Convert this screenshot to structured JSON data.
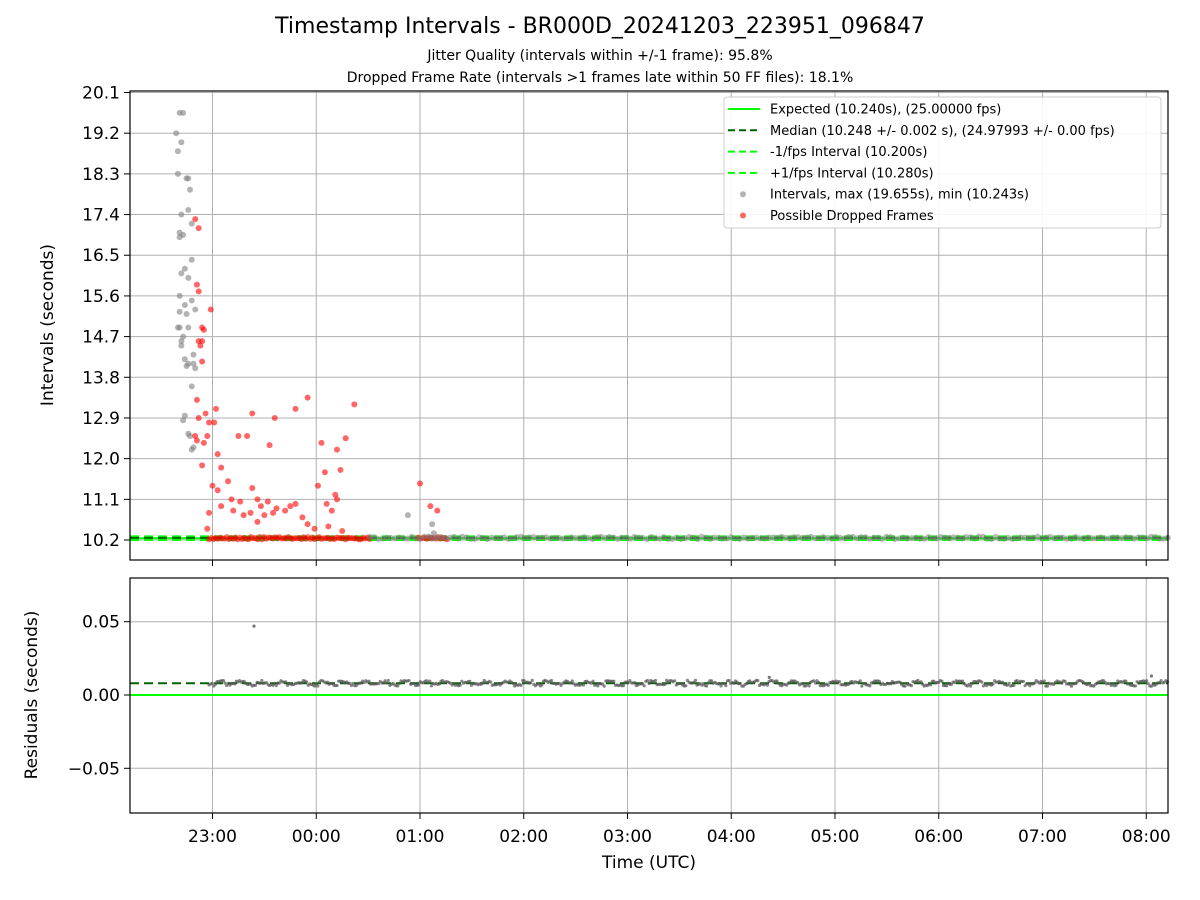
{
  "chart_data": [
    {
      "type": "scatter",
      "title": "Timestamp Intervals - BR000D_20241203_223951_096847",
      "subtitles": [
        "Jitter Quality (intervals within +/-1 frame): 95.8%",
        "Dropped Frame Rate (intervals >1 frames late within 50 FF files): 18.1%"
      ],
      "xlabel": "Time (UTC)",
      "ylabel": "Intervals (seconds)",
      "x_ticks": [
        "23:00",
        "00:00",
        "01:00",
        "02:00",
        "03:00",
        "04:00",
        "05:00",
        "06:00",
        "07:00",
        "08:00"
      ],
      "x_range": [
        "2024-12-03 22:12",
        "2024-12-04 08:13"
      ],
      "y_ticks": [
        "10.2",
        "11.1",
        "12.0",
        "12.9",
        "13.8",
        "14.7",
        "15.6",
        "16.5",
        "17.4",
        "18.3",
        "19.2",
        "20.1"
      ],
      "ylim": [
        9.78,
        20.2
      ],
      "grid": true,
      "legend_position": "top-right",
      "colors": {
        "expected": "#00ff00",
        "median": "#006400",
        "fps_interval": "#00ff00",
        "intervals": "#808080",
        "dropped": "#ff0000"
      },
      "legend": [
        {
          "label": "Expected (10.240s), (25.00000 fps)",
          "style": "solid-line",
          "color": "#00ff00"
        },
        {
          "label": "Median (10.248 +/- 0.002 s), (24.97993 +/- 0.00 fps)",
          "style": "dashed-line",
          "color": "#006400"
        },
        {
          "label": "-1/fps Interval (10.200s)",
          "style": "dashed-line",
          "color": "#00ff00"
        },
        {
          "label": "+1/fps Interval (10.280s)",
          "style": "dashed-line",
          "color": "#00ff00"
        },
        {
          "label": "Intervals, max (19.655s), min (10.243s)",
          "style": "marker",
          "color": "#808080"
        },
        {
          "label": "Possible Dropped Frames",
          "style": "marker",
          "color": "#ff0000"
        }
      ],
      "reference_lines": [
        {
          "name": "Expected",
          "y": 10.24
        },
        {
          "name": "Median",
          "y": 10.248
        },
        {
          "name": "-1/fps Interval",
          "y": 10.2
        },
        {
          "name": "+1/fps Interval",
          "y": 10.28
        }
      ],
      "series": [
        {
          "name": "Intervals, max (19.655s), min (10.243s)",
          "points": [
            {
              "x": "2024-12-03 22:39",
              "y": 19.2
            },
            {
              "x": "2024-12-03 22:40",
              "y": 18.3
            },
            {
              "x": "2024-12-03 22:40",
              "y": 18.8
            },
            {
              "x": "2024-12-03 22:41",
              "y": 19.65
            },
            {
              "x": "2024-12-03 22:43",
              "y": 19.65
            },
            {
              "x": "2024-12-03 22:42",
              "y": 19.0
            },
            {
              "x": "2024-12-03 22:46",
              "y": 18.2
            },
            {
              "x": "2024-12-03 22:47",
              "y": 17.95
            },
            {
              "x": "2024-12-03 22:46",
              "y": 17.5
            },
            {
              "x": "2024-12-03 22:45",
              "y": 18.2
            },
            {
              "x": "2024-12-03 22:42",
              "y": 17.4
            },
            {
              "x": "2024-12-03 22:41",
              "y": 17.0
            },
            {
              "x": "2024-12-03 22:41",
              "y": 16.9
            },
            {
              "x": "2024-12-03 22:43",
              "y": 16.95
            },
            {
              "x": "2024-12-03 22:48",
              "y": 17.2
            },
            {
              "x": "2024-12-03 22:48",
              "y": 16.4
            },
            {
              "x": "2024-12-03 22:44",
              "y": 16.2
            },
            {
              "x": "2024-12-03 22:42",
              "y": 16.1
            },
            {
              "x": "2024-12-03 22:46",
              "y": 16.0
            },
            {
              "x": "2024-12-03 22:41",
              "y": 15.6
            },
            {
              "x": "2024-12-03 22:44",
              "y": 15.4
            },
            {
              "x": "2024-12-03 22:45",
              "y": 15.2
            },
            {
              "x": "2024-12-03 22:41",
              "y": 15.25
            },
            {
              "x": "2024-12-03 22:40",
              "y": 14.9
            },
            {
              "x": "2024-12-03 22:41",
              "y": 14.9
            },
            {
              "x": "2024-12-03 22:43",
              "y": 14.7
            },
            {
              "x": "2024-12-03 22:46",
              "y": 14.9
            },
            {
              "x": "2024-12-03 22:48",
              "y": 15.5
            },
            {
              "x": "2024-12-03 22:50",
              "y": 15.3
            },
            {
              "x": "2024-12-03 22:42",
              "y": 14.5
            },
            {
              "x": "2024-12-03 22:42",
              "y": 14.6
            },
            {
              "x": "2024-12-03 22:44",
              "y": 14.2
            },
            {
              "x": "2024-12-03 22:46",
              "y": 14.1
            },
            {
              "x": "2024-12-03 22:45",
              "y": 14.05
            },
            {
              "x": "2024-12-03 22:49",
              "y": 14.3
            },
            {
              "x": "2024-12-03 22:50",
              "y": 14.0
            },
            {
              "x": "2024-12-03 22:48",
              "y": 13.6
            },
            {
              "x": "2024-12-03 22:49",
              "y": 14.1
            },
            {
              "x": "2024-12-03 22:44",
              "y": 12.95
            },
            {
              "x": "2024-12-03 22:43",
              "y": 12.85
            },
            {
              "x": "2024-12-03 22:46",
              "y": 12.55
            },
            {
              "x": "2024-12-03 22:47",
              "y": 12.5
            },
            {
              "x": "2024-12-03 22:48",
              "y": 12.2
            },
            {
              "x": "2024-12-03 22:49",
              "y": 12.25
            },
            {
              "x": "2024-12-04 00:53",
              "y": 10.75
            },
            {
              "x": "2024-12-04 01:07",
              "y": 10.55
            },
            {
              "x": "2024-12-04 01:08",
              "y": 10.35
            }
          ]
        },
        {
          "name": "Possible Dropped Frames",
          "points": [
            {
              "x": "2024-12-03 22:50",
              "y": 17.3
            },
            {
              "x": "2024-12-03 22:52",
              "y": 17.1
            },
            {
              "x": "2024-12-03 22:51",
              "y": 15.85
            },
            {
              "x": "2024-12-03 22:52",
              "y": 15.7
            },
            {
              "x": "2024-12-03 22:54",
              "y": 14.9
            },
            {
              "x": "2024-12-03 22:55",
              "y": 14.85
            },
            {
              "x": "2024-12-03 22:52",
              "y": 14.6
            },
            {
              "x": "2024-12-03 22:53",
              "y": 14.5
            },
            {
              "x": "2024-12-03 22:54",
              "y": 14.6
            },
            {
              "x": "2024-12-03 22:54",
              "y": 14.15
            },
            {
              "x": "2024-12-03 22:59",
              "y": 15.3
            },
            {
              "x": "2024-12-03 22:51",
              "y": 13.3
            },
            {
              "x": "2024-12-03 22:52",
              "y": 12.9
            },
            {
              "x": "2024-12-03 22:56",
              "y": 13.0
            },
            {
              "x": "2024-12-03 22:58",
              "y": 12.8
            },
            {
              "x": "2024-12-03 23:01",
              "y": 12.8
            },
            {
              "x": "2024-12-03 23:02",
              "y": 13.1
            },
            {
              "x": "2024-12-03 22:50",
              "y": 12.5
            },
            {
              "x": "2024-12-03 22:51",
              "y": 12.4
            },
            {
              "x": "2024-12-03 22:55",
              "y": 12.35
            },
            {
              "x": "2024-12-03 22:57",
              "y": 12.5
            },
            {
              "x": "2024-12-03 23:03",
              "y": 12.1
            },
            {
              "x": "2024-12-03 23:05",
              "y": 11.8
            },
            {
              "x": "2024-12-03 22:54",
              "y": 11.85
            },
            {
              "x": "2024-12-03 23:00",
              "y": 11.4
            },
            {
              "x": "2024-12-03 23:03",
              "y": 11.3
            },
            {
              "x": "2024-12-03 23:09",
              "y": 11.5
            },
            {
              "x": "2024-12-03 23:11",
              "y": 11.1
            },
            {
              "x": "2024-12-03 23:16",
              "y": 11.05
            },
            {
              "x": "2024-12-03 23:23",
              "y": 11.35
            },
            {
              "x": "2024-12-03 23:26",
              "y": 11.1
            },
            {
              "x": "2024-12-03 23:28",
              "y": 10.95
            },
            {
              "x": "2024-12-03 23:32",
              "y": 11.05
            },
            {
              "x": "2024-12-03 23:05",
              "y": 10.95
            },
            {
              "x": "2024-12-03 23:12",
              "y": 10.85
            },
            {
              "x": "2024-12-03 23:18",
              "y": 10.75
            },
            {
              "x": "2024-12-03 23:22",
              "y": 10.8
            },
            {
              "x": "2024-12-03 23:26",
              "y": 10.6
            },
            {
              "x": "2024-12-03 23:30",
              "y": 10.75
            },
            {
              "x": "2024-12-03 23:35",
              "y": 10.8
            },
            {
              "x": "2024-12-03 23:37",
              "y": 10.9
            },
            {
              "x": "2024-12-03 23:42",
              "y": 10.85
            },
            {
              "x": "2024-12-03 23:45",
              "y": 10.95
            },
            {
              "x": "2024-12-03 23:48",
              "y": 11.0
            },
            {
              "x": "2024-12-03 23:52",
              "y": 10.7
            },
            {
              "x": "2024-12-03 23:55",
              "y": 10.55
            },
            {
              "x": "2024-12-03 23:59",
              "y": 10.45
            },
            {
              "x": "2024-12-03 22:58",
              "y": 10.8
            },
            {
              "x": "2024-12-03 22:57",
              "y": 10.45
            },
            {
              "x": "2024-12-03 23:15",
              "y": 12.5
            },
            {
              "x": "2024-12-03 23:20",
              "y": 12.5
            },
            {
              "x": "2024-12-03 23:23",
              "y": 13.0
            },
            {
              "x": "2024-12-03 23:33",
              "y": 12.3
            },
            {
              "x": "2024-12-03 23:36",
              "y": 12.9
            },
            {
              "x": "2024-12-03 23:48",
              "y": 13.1
            },
            {
              "x": "2024-12-03 23:55",
              "y": 13.35
            },
            {
              "x": "2024-12-04 00:03",
              "y": 12.35
            },
            {
              "x": "2024-12-04 00:01",
              "y": 11.4
            },
            {
              "x": "2024-12-04 00:05",
              "y": 11.7
            },
            {
              "x": "2024-12-04 00:06",
              "y": 11.0
            },
            {
              "x": "2024-12-04 00:09",
              "y": 10.85
            },
            {
              "x": "2024-12-04 00:11",
              "y": 11.2
            },
            {
              "x": "2024-12-04 00:12",
              "y": 11.1
            },
            {
              "x": "2024-12-04 00:14",
              "y": 11.75
            },
            {
              "x": "2024-12-04 00:17",
              "y": 12.45
            },
            {
              "x": "2024-12-04 00:12",
              "y": 12.2
            },
            {
              "x": "2024-12-04 00:22",
              "y": 13.2
            },
            {
              "x": "2024-12-04 00:07",
              "y": 10.5
            },
            {
              "x": "2024-12-04 00:15",
              "y": 10.4
            },
            {
              "x": "2024-12-04 01:00",
              "y": 11.45
            },
            {
              "x": "2024-12-04 01:06",
              "y": 10.95
            },
            {
              "x": "2024-12-04 01:10",
              "y": 10.85
            }
          ]
        }
      ],
      "dense_bands": [
        {
          "series": "Possible Dropped Frames",
          "x_from": "2024-12-03 22:58",
          "x_to": "2024-12-04 00:31",
          "y": 10.24
        },
        {
          "series": "Possible Dropped Frames",
          "x_from": "2024-12-04 00:59",
          "x_to": "2024-12-04 01:16",
          "y": 10.24
        },
        {
          "series": "Intervals, max (19.655s), min (10.243s)",
          "x_from": "2024-12-04 00:31",
          "x_to": "2024-12-04 08:13",
          "y": 10.248
        }
      ]
    },
    {
      "type": "scatter",
      "xlabel": "Time (UTC)",
      "ylabel": "Residuals (seconds)",
      "y_ticks": [
        "0.05",
        "0.00",
        "−0.05"
      ],
      "ylim": [
        -0.08,
        0.08
      ],
      "grid": true,
      "reference_lines": [
        {
          "name": "Expected",
          "y": 0.0,
          "color": "#00ff00"
        },
        {
          "name": "Median",
          "y": 0.008,
          "color": "#006400"
        }
      ],
      "series": [
        {
          "name": "Residuals",
          "points": [
            {
              "x": "2024-12-03 23:24",
              "y": 0.047
            },
            {
              "x": "2024-12-04 04:22",
              "y": 0.012
            },
            {
              "x": "2024-12-04 08:03",
              "y": 0.013
            }
          ],
          "band": {
            "x_from": "2024-12-03 22:58",
            "x_to": "2024-12-04 08:13",
            "y_center": 0.008,
            "spread": 0.002
          }
        }
      ]
    }
  ]
}
